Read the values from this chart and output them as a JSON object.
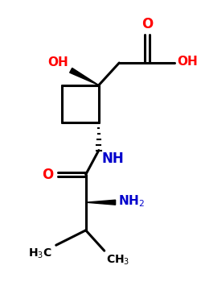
{
  "bg_color": "#ffffff",
  "bond_color": "#000000",
  "bond_lw": 2.2,
  "O_color": "#ff0000",
  "N_color": "#0000cc",
  "figsize": [
    2.5,
    3.5
  ],
  "dpi": 100,
  "xlim": [
    0,
    10
  ],
  "ylim": [
    0,
    14
  ]
}
